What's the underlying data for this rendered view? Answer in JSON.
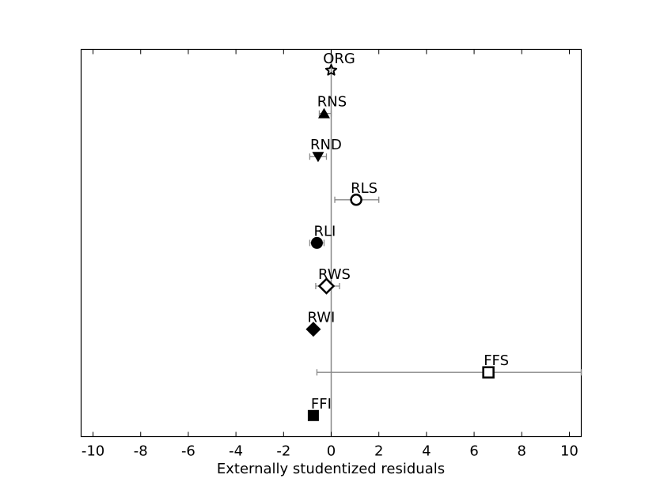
{
  "chart_data": {
    "type": "scatter",
    "xlabel": "Externally studentized residuals",
    "ylabel": "",
    "title": "",
    "xlim": [
      -10.5,
      10.5
    ],
    "xticks": [
      -10,
      -8,
      -6,
      -4,
      -2,
      0,
      2,
      4,
      6,
      8,
      10
    ],
    "tick_labels": [
      "-10",
      "-8",
      "-6",
      "-4",
      "-2",
      "0",
      "2",
      "4",
      "6",
      "8",
      "10"
    ],
    "grid": false,
    "vertical_reference_line": 0,
    "points": [
      {
        "label": "ORG",
        "x": 0.0,
        "err_low": 0.0,
        "err_high": 0.0,
        "marker": "star-open"
      },
      {
        "label": "RNS",
        "x": -0.3,
        "err_low": -0.5,
        "err_high": 0.0,
        "marker": "triangle-up-filled"
      },
      {
        "label": "RND",
        "x": -0.55,
        "err_low": -0.9,
        "err_high": -0.2,
        "marker": "triangle-down-filled"
      },
      {
        "label": "RLS",
        "x": 1.05,
        "err_low": 0.15,
        "err_high": 2.0,
        "marker": "circle-open"
      },
      {
        "label": "RLI",
        "x": -0.6,
        "err_low": -0.9,
        "err_high": -0.3,
        "marker": "circle-filled"
      },
      {
        "label": "RWS",
        "x": -0.2,
        "err_low": -0.65,
        "err_high": 0.35,
        "marker": "diamond-open"
      },
      {
        "label": "RWI",
        "x": -0.75,
        "err_low": -0.75,
        "err_high": -0.75,
        "marker": "diamond-filled"
      },
      {
        "label": "FFS",
        "x": 6.6,
        "err_low": -0.6,
        "err_high": 10.5,
        "marker": "square-open"
      },
      {
        "label": "FFI",
        "x": -0.75,
        "err_low": -0.75,
        "err_high": -0.75,
        "marker": "square-filled"
      }
    ]
  }
}
